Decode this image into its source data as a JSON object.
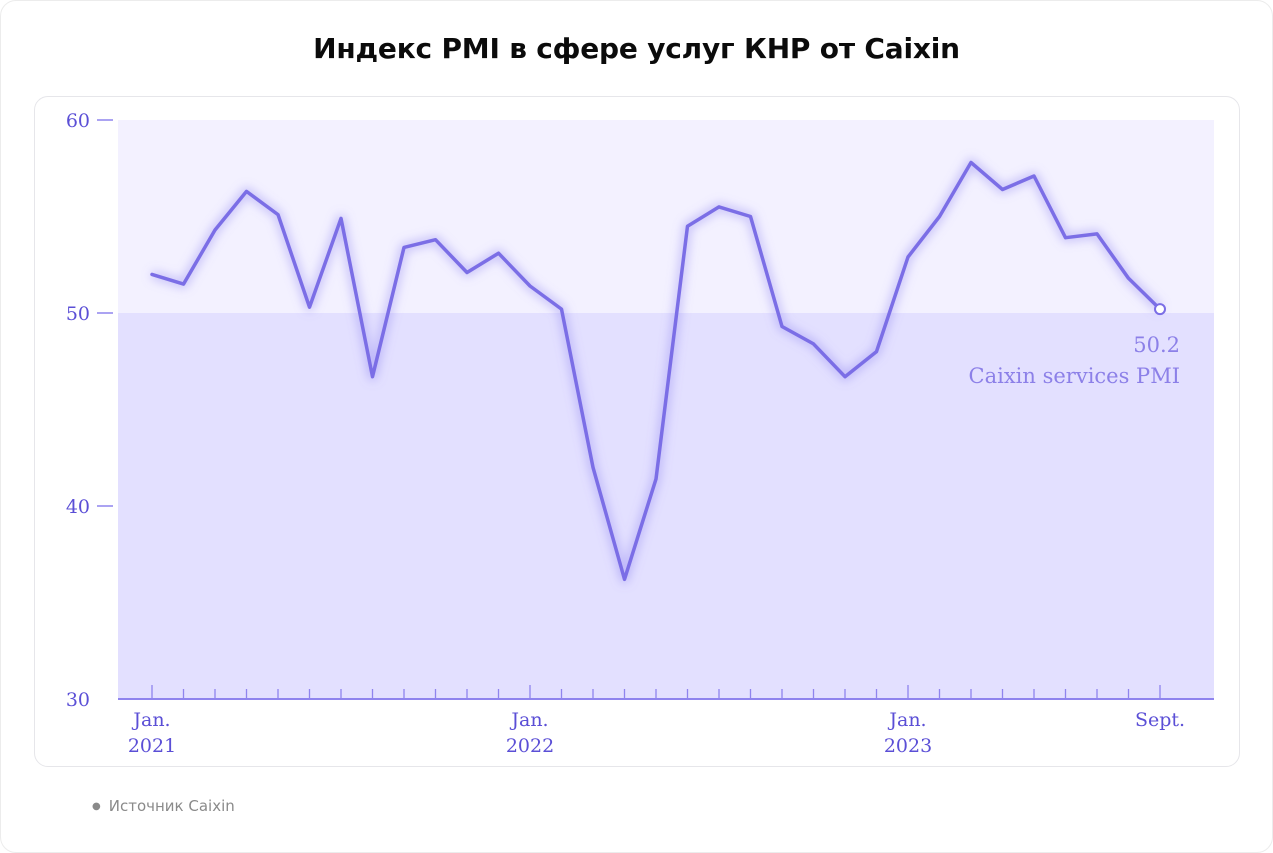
{
  "title": "Индекс PMI в сфере услуг КНР от Caixin",
  "source": "Источник Caixin",
  "colors": {
    "line": "#7b6ee6",
    "upper_band": "#f3f1ff",
    "lower_band": "#e3e0ff",
    "axis": "#8f84ee",
    "text": "#5b4fd6"
  },
  "chart_data": {
    "type": "line",
    "title": "Индекс PMI в сфере услуг КНР от Caixin",
    "xlabel": "",
    "ylabel": "",
    "ylim": [
      30,
      60
    ],
    "yticks": [
      30,
      40,
      50,
      60
    ],
    "y_threshold": 50,
    "x_labels": [
      {
        "index": 0,
        "line1": "Jan.",
        "line2": "2021"
      },
      {
        "index": 12,
        "line1": "Jan.",
        "line2": "2022"
      },
      {
        "index": 24,
        "line1": "Jan.",
        "line2": "2023"
      },
      {
        "index": 32,
        "line1": "Sept.",
        "line2": ""
      }
    ],
    "series": [
      {
        "name": "Caixin services PMI",
        "x": [
          "2021-01",
          "2021-02",
          "2021-03",
          "2021-04",
          "2021-05",
          "2021-06",
          "2021-07",
          "2021-08",
          "2021-09",
          "2021-10",
          "2021-11",
          "2021-12",
          "2022-01",
          "2022-02",
          "2022-03",
          "2022-04",
          "2022-05",
          "2022-06",
          "2022-07",
          "2022-08",
          "2022-09",
          "2022-10",
          "2022-11",
          "2022-12",
          "2023-01",
          "2023-02",
          "2023-03",
          "2023-04",
          "2023-05",
          "2023-06",
          "2023-07",
          "2023-08",
          "2023-09"
        ],
        "values": [
          52.0,
          51.5,
          54.3,
          56.3,
          55.1,
          50.3,
          54.9,
          46.7,
          53.4,
          53.8,
          52.1,
          53.1,
          51.4,
          50.2,
          42.0,
          36.2,
          41.4,
          54.5,
          55.5,
          55.0,
          49.3,
          48.4,
          46.7,
          48.0,
          52.9,
          55.0,
          57.8,
          56.4,
          57.1,
          53.9,
          54.1,
          51.8,
          50.2
        ]
      }
    ],
    "annotation": {
      "value": "50.2",
      "label": "Caixin services PMI"
    }
  }
}
